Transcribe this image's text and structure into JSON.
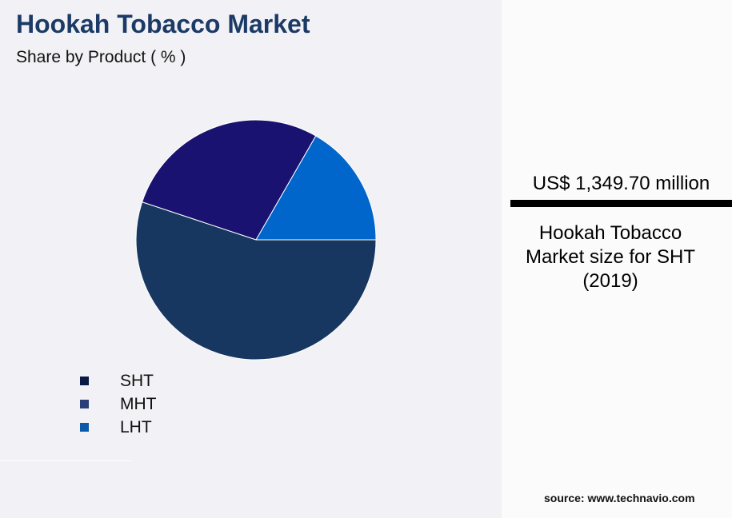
{
  "chart_data": {
    "type": "pie",
    "title": "Hookah Tobacco Market",
    "subtitle": "Share by Product ( % )",
    "slices": [
      {
        "label": "LHT",
        "value": 16.7,
        "color": "#0066cc",
        "legend_color": "#0a5aaa"
      },
      {
        "label": "MHT",
        "value": 28.2,
        "color": "#1a1270",
        "legend_color": "#2a3f78"
      },
      {
        "label": "SHT",
        "value": 55.1,
        "color": "#173761",
        "legend_color": "#0a1a45"
      }
    ],
    "legend": [
      "SHT",
      "MHT",
      "LHT"
    ],
    "legend_placement": "bottom-left"
  },
  "kpi": {
    "value": "US$ 1,349.70 million",
    "description": "Hookah Tobacco Market size for SHT (2019)"
  },
  "source": "source: www.technavio.com"
}
